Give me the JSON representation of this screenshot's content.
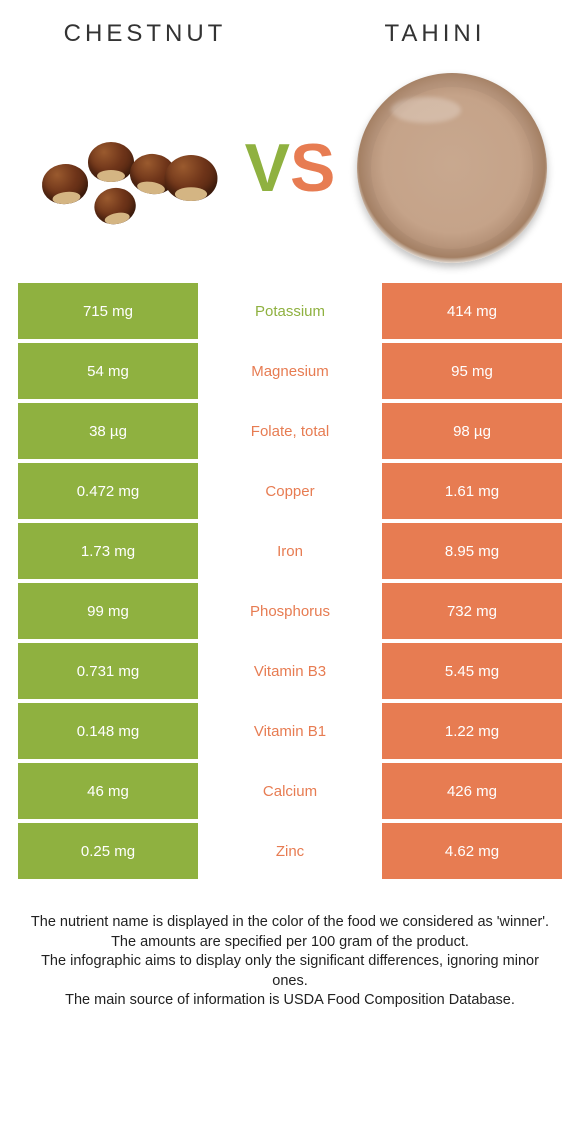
{
  "header": {
    "left_title": "CHESTNUT",
    "right_title": "TAHINI",
    "vs_left": "V",
    "vs_right": "S"
  },
  "colors": {
    "left": "#8fb140",
    "right": "#e77c52",
    "vs_left": "#8fb140",
    "vs_right": "#e77c52"
  },
  "rows": [
    {
      "left": "715 mg",
      "label": "Potassium",
      "right": "414 mg",
      "winner": "left"
    },
    {
      "left": "54 mg",
      "label": "Magnesium",
      "right": "95 mg",
      "winner": "right"
    },
    {
      "left": "38 µg",
      "label": "Folate, total",
      "right": "98 µg",
      "winner": "right"
    },
    {
      "left": "0.472 mg",
      "label": "Copper",
      "right": "1.61 mg",
      "winner": "right"
    },
    {
      "left": "1.73 mg",
      "label": "Iron",
      "right": "8.95 mg",
      "winner": "right"
    },
    {
      "left": "99 mg",
      "label": "Phosphorus",
      "right": "732 mg",
      "winner": "right"
    },
    {
      "left": "0.731 mg",
      "label": "Vitamin B3",
      "right": "5.45 mg",
      "winner": "right"
    },
    {
      "left": "0.148 mg",
      "label": "Vitamin B1",
      "right": "1.22 mg",
      "winner": "right"
    },
    {
      "left": "46 mg",
      "label": "Calcium",
      "right": "426 mg",
      "winner": "right"
    },
    {
      "left": "0.25 mg",
      "label": "Zinc",
      "right": "4.62 mg",
      "winner": "right"
    }
  ],
  "footer": {
    "line1": "The nutrient name is displayed in the color of the food we considered as 'winner'.",
    "line2": "The amounts are specified per 100 gram of the product.",
    "line3": "The infographic aims to display only the significant differences, ignoring minor ones.",
    "line4": "The main source of information is USDA Food Composition Database."
  }
}
